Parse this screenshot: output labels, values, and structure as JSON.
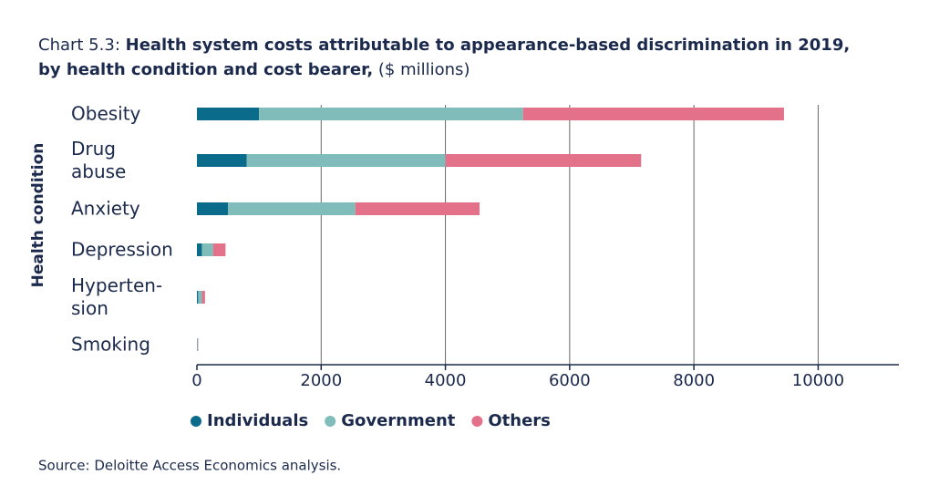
{
  "chart_data": {
    "type": "bar",
    "orientation": "horizontal",
    "stacked": true,
    "title": {
      "label": "Chart 5.3:",
      "text": "Health system costs attributable to appearance-based discrimination in 2019, by health condition and cost bearer,",
      "unit": "($ millions)"
    },
    "y_label": "Health condition",
    "categories": [
      "Obesity",
      "Drug\nabuse",
      "Anxiety",
      "Depression",
      "Hyperten-\nsion",
      "Smoking"
    ],
    "series": [
      {
        "name": "Individuals",
        "color": "#0b6b8a",
        "values": [
          1000,
          800,
          500,
          80,
          20,
          5
        ]
      },
      {
        "name": "Government",
        "color": "#80bcb9",
        "values": [
          4250,
          3200,
          2050,
          180,
          60,
          10
        ]
      },
      {
        "name": "Others",
        "color": "#e4718a",
        "values": [
          4200,
          3150,
          2000,
          200,
          50,
          5
        ]
      }
    ],
    "xlim": [
      0,
      11300
    ],
    "xticks": [
      0,
      2000,
      4000,
      6000,
      8000,
      10000
    ],
    "grid": true,
    "legend": "bottom",
    "source": "Source: Deloitte Access Economics analysis."
  }
}
